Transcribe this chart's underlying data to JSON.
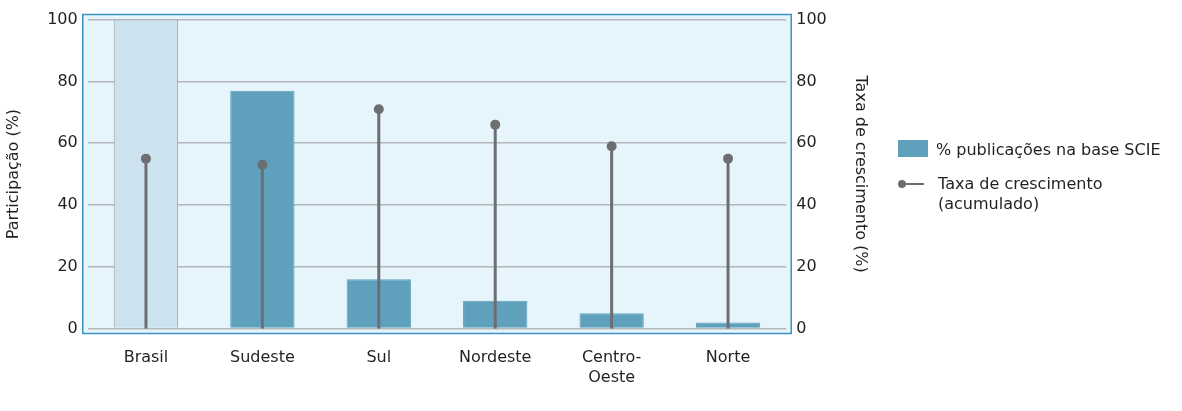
{
  "chart_data": {
    "type": "bar",
    "categories": [
      "Brasil",
      "Sudeste",
      "Sul",
      "Nordeste",
      "Centro-Oeste",
      "Norte"
    ],
    "ylabel": "Participação (%)",
    "y2label": "Taxa de crescimento (%)",
    "series": [
      {
        "name": "% publicações na base SCIE",
        "type": "bar",
        "color": "#5fa1bc",
        "colors": [
          "#cce3ef",
          "#5fa1bc",
          "#5fa1bc",
          "#5fa1bc",
          "#5fa1bc",
          "#5fa1bc"
        ],
        "values": [
          100,
          77,
          16,
          9,
          5,
          2
        ]
      },
      {
        "name": "Taxa de crescimento (acumulado)",
        "type": "lollipop",
        "axis": "y2",
        "color": "#6d6e71",
        "values": [
          55,
          53,
          71,
          66,
          59,
          55
        ]
      }
    ],
    "ylim": [
      0,
      100
    ],
    "yticks": [
      0,
      20,
      40,
      60,
      80,
      100
    ],
    "y2lim": [
      0,
      100
    ],
    "y2ticks": [
      0,
      20,
      40,
      60,
      80,
      100
    ],
    "grid": "y",
    "legend": "right",
    "marker": "circle"
  }
}
